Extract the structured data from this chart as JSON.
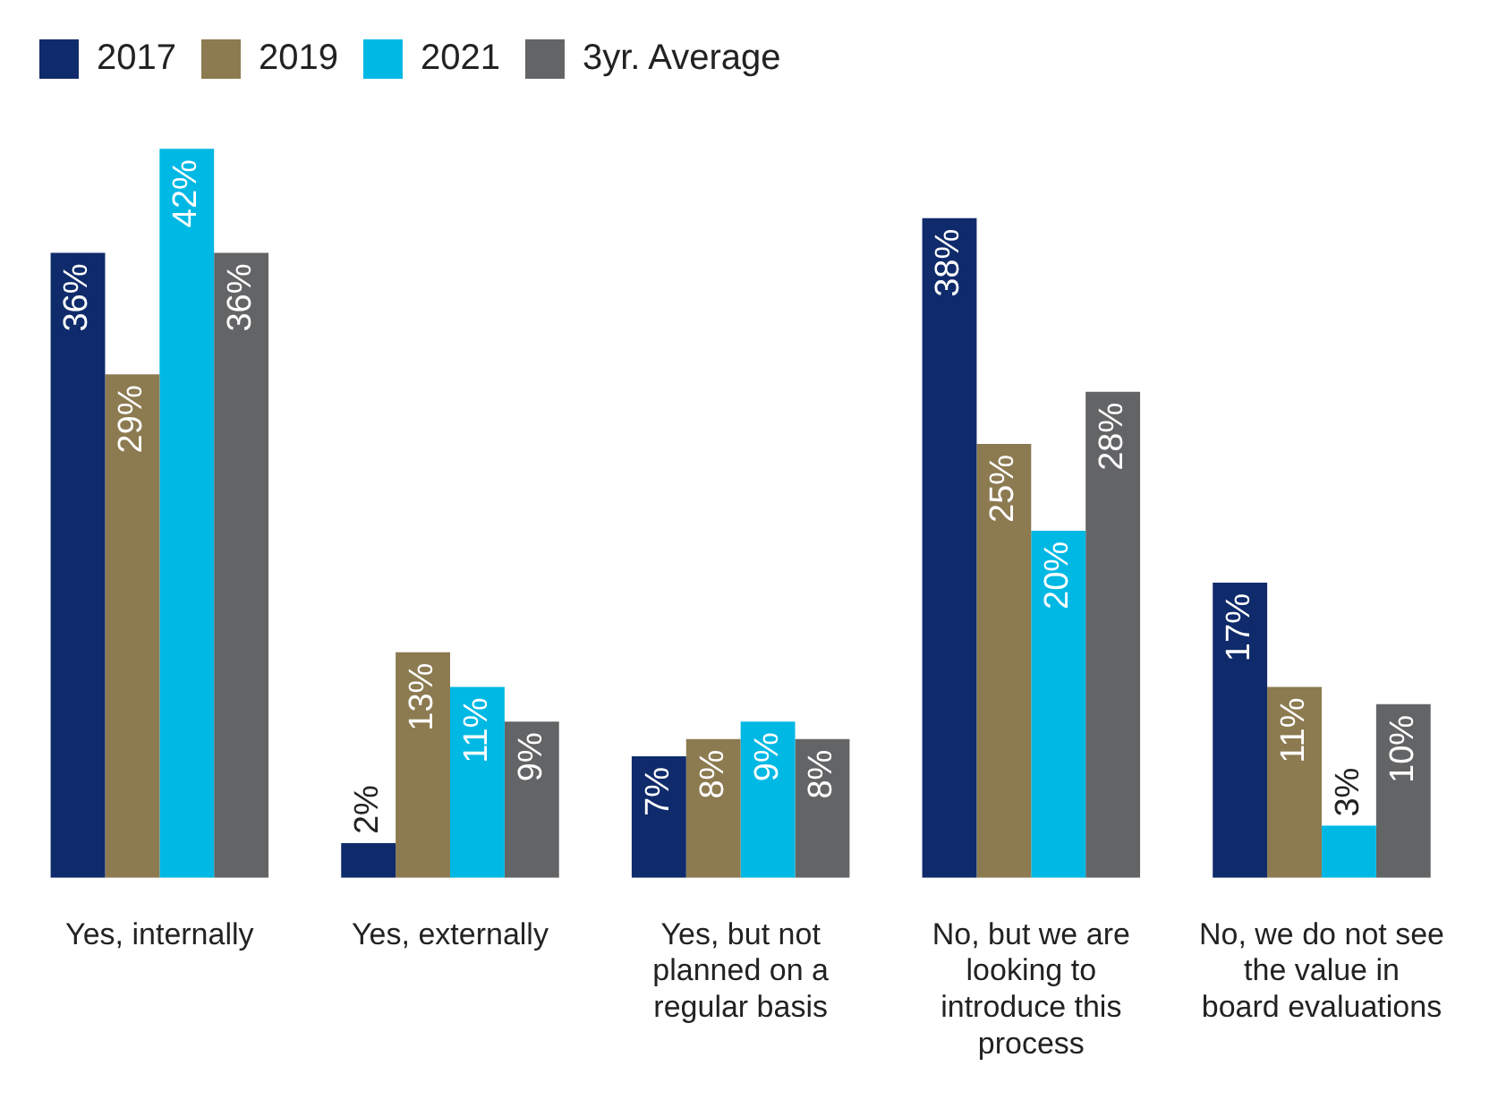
{
  "chart_data": {
    "type": "bar",
    "categories": [
      "Yes, internally",
      "Yes, externally",
      "Yes, but not planned on a regular basis",
      "No, but we are looking to introduce this process",
      "No, we do not see the value in board evaluations"
    ],
    "series": [
      {
        "name": "2017",
        "color": "#0f2b6b",
        "values": [
          36,
          2,
          7,
          38,
          17
        ],
        "value_labels": [
          "36%",
          "2%",
          "7%",
          "38%",
          "17%"
        ]
      },
      {
        "name": "2019",
        "color": "#8c7a50",
        "values": [
          29,
          13,
          8,
          25,
          11
        ],
        "value_labels": [
          "29%",
          "13%",
          "8%",
          "25%",
          "11%"
        ]
      },
      {
        "name": "2021",
        "color": "#00b8e4",
        "values": [
          42,
          11,
          9,
          20,
          3
        ],
        "value_labels": [
          "42%",
          "11%",
          "9%",
          "20%",
          "3%"
        ]
      },
      {
        "name": "3yr. Average",
        "color": "#636466",
        "values": [
          36,
          9,
          8,
          28,
          10
        ],
        "value_labels": [
          "36%",
          "9%",
          "8%",
          "28%",
          "10%"
        ]
      }
    ],
    "legend": "top left",
    "grid": false
  }
}
